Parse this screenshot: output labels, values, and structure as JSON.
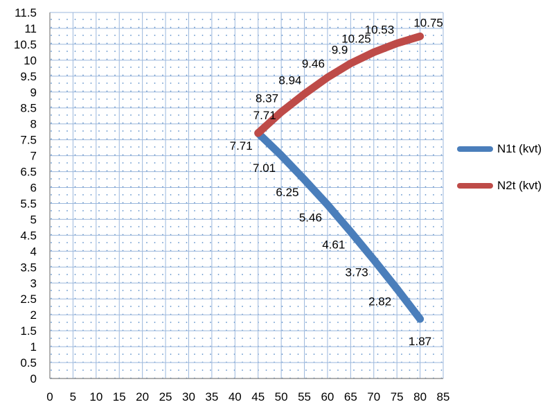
{
  "chart_data": {
    "type": "line",
    "title": "",
    "xlabel": "",
    "ylabel": "",
    "xlim": [
      0,
      85
    ],
    "ylim": [
      0,
      11.5
    ],
    "x_ticks": [
      0,
      5,
      10,
      15,
      20,
      25,
      30,
      35,
      40,
      45,
      50,
      55,
      60,
      65,
      70,
      75,
      80,
      85
    ],
    "y_ticks": [
      0,
      0.5,
      1,
      1.5,
      2,
      2.5,
      3,
      3.5,
      4,
      4.5,
      5,
      5.5,
      6,
      6.5,
      7,
      7.5,
      8,
      8.5,
      9,
      9.5,
      10,
      10.5,
      11,
      11.5
    ],
    "grid": true,
    "legend_position": "right",
    "series": [
      {
        "name": "N1t (kvt)",
        "color": "#4a7ebb",
        "x": [
          45,
          50,
          55,
          60,
          65,
          70,
          75,
          80
        ],
        "values": [
          7.71,
          7.01,
          6.25,
          5.46,
          4.61,
          3.73,
          2.82,
          1.87
        ],
        "labels": [
          "7.71",
          "7.01",
          "6.25",
          "5.46",
          "4.61",
          "3.73",
          "2.82",
          "1.87"
        ]
      },
      {
        "name": "N2t (kvt)",
        "color": "#be4b48",
        "x": [
          45,
          50,
          55,
          60,
          65,
          70,
          75,
          80
        ],
        "values": [
          7.71,
          8.37,
          8.94,
          9.46,
          9.9,
          10.25,
          10.53,
          10.75
        ],
        "labels": [
          "7.71",
          "8.37",
          "8.94",
          "9.46",
          "9.9",
          "10.25",
          "10.53",
          "10.75"
        ]
      }
    ]
  },
  "legend": {
    "items": [
      {
        "label": "N1t (kvt)",
        "color": "#4a7ebb"
      },
      {
        "label": "N2t (kvt)",
        "color": "#be4b48"
      }
    ]
  }
}
